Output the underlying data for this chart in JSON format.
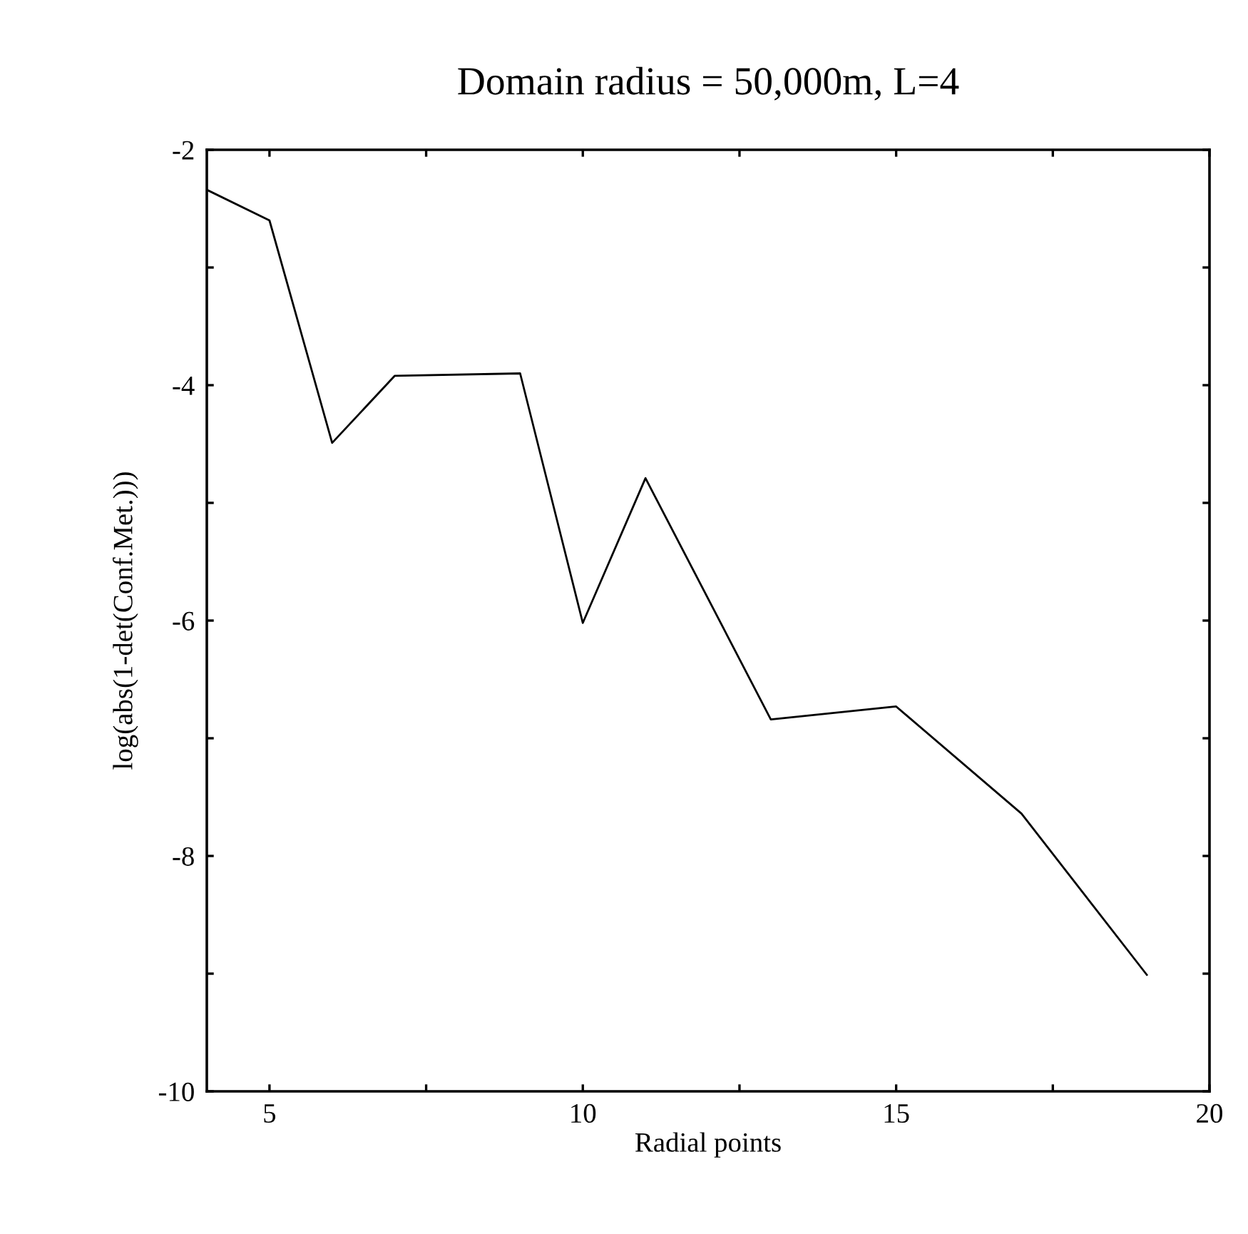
{
  "chart_data": {
    "type": "line",
    "title": "Domain radius = 50,000m, L=4",
    "xlabel": "Radial points",
    "ylabel": "log(abs(1-det(Conf.Met.)))",
    "x": [
      4,
      5,
      6,
      7,
      9,
      10,
      11,
      13,
      15,
      17,
      19
    ],
    "series": [
      {
        "color": "#000000",
        "values": [
          -2.34,
          -2.6,
          -4.49,
          -3.92,
          -3.9,
          -6.02,
          -4.79,
          -6.84,
          -6.73,
          -7.64,
          -9.01
        ]
      }
    ],
    "xlim": [
      4,
      20
    ],
    "ylim": [
      -10,
      -2
    ],
    "xticks": [
      5,
      {
        "value": 7.5,
        "label": null
      },
      10,
      {
        "value": 12.5,
        "label": null
      },
      15,
      {
        "value": 17.5,
        "label": null
      },
      20
    ],
    "yticks": [
      -10,
      {
        "value": -9,
        "label": null
      },
      -8,
      {
        "value": -7,
        "label": null
      },
      -6,
      {
        "value": -5,
        "label": null
      },
      -4,
      {
        "value": -3,
        "label": null
      },
      -2
    ],
    "grid": false,
    "marker": "none",
    "line_style": "solid"
  }
}
